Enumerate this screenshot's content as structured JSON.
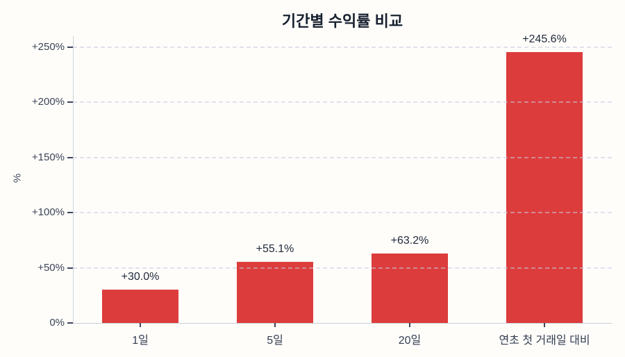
{
  "chart_data": {
    "type": "bar",
    "title": "기간별 수익률 비교",
    "ylabel": "%",
    "categories": [
      "1일",
      "5일",
      "20일",
      "연초 첫 거래일 대비"
    ],
    "values": [
      30.0,
      55.1,
      63.2,
      245.6
    ],
    "value_labels": [
      "+30.0%",
      "+55.1%",
      "+63.2%",
      "+245.6%"
    ],
    "yticks": [
      {
        "value": 0,
        "label": "0%"
      },
      {
        "value": 50,
        "label": "+50%"
      },
      {
        "value": 100,
        "label": "+100%"
      },
      {
        "value": 150,
        "label": "+150%"
      },
      {
        "value": 200,
        "label": "+200%"
      },
      {
        "value": 250,
        "label": "+250%"
      }
    ],
    "ylim": [
      0,
      260
    ],
    "bar_color": "#dd3c3c",
    "grid": "dashed horizontal, drawn over bars",
    "legend": "none",
    "background_color": "#fefdfa",
    "title_color": "#17202f",
    "tick_color": "#3b4456"
  }
}
